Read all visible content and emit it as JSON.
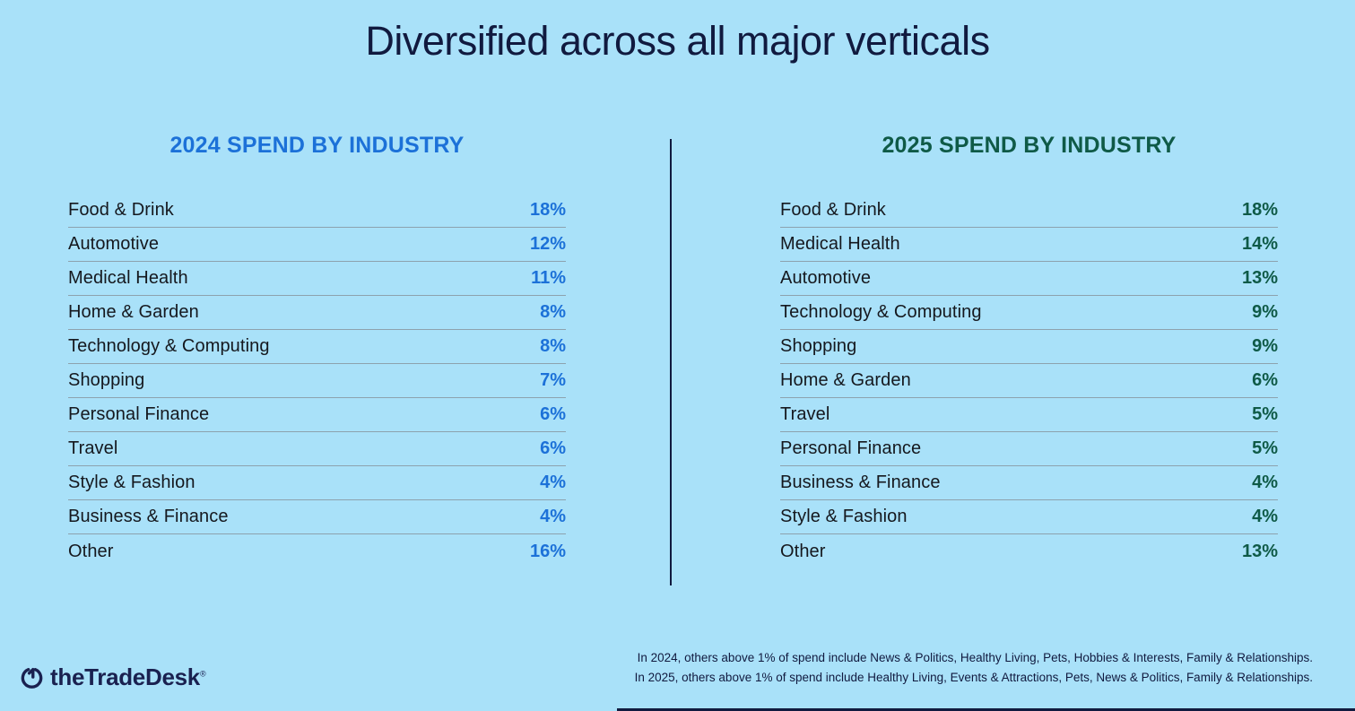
{
  "title": "Diversified across all major verticals",
  "colors": {
    "bg": "#A9E1F9",
    "navy": "#111A3F",
    "ink": "#15181E",
    "blue": "#1C71D8",
    "green": "#0F5A47",
    "line": "#8DA2AE",
    "logo": "#1A2150"
  },
  "tables": [
    {
      "header": "2024 SPEND BY INDUSTRY",
      "accent": "#1C71D8",
      "rows": [
        {
          "label": "Food & Drink",
          "value": "18%"
        },
        {
          "label": "Automotive",
          "value": "12%"
        },
        {
          "label": "Medical Health",
          "value": "11%"
        },
        {
          "label": "Home & Garden",
          "value": "8%"
        },
        {
          "label": "Technology & Computing",
          "value": "8%"
        },
        {
          "label": "Shopping",
          "value": "7%"
        },
        {
          "label": "Personal Finance",
          "value": "6%"
        },
        {
          "label": "Travel",
          "value": "6%"
        },
        {
          "label": "Style & Fashion",
          "value": "4%"
        },
        {
          "label": "Business & Finance",
          "value": "4%"
        },
        {
          "label": "Other",
          "value": "16%"
        }
      ]
    },
    {
      "header": "2025 SPEND BY INDUSTRY",
      "accent": "#0F5A47",
      "rows": [
        {
          "label": "Food & Drink",
          "value": "18%"
        },
        {
          "label": "Medical Health",
          "value": "14%"
        },
        {
          "label": "Automotive",
          "value": "13%"
        },
        {
          "label": "Technology & Computing",
          "value": "9%"
        },
        {
          "label": "Shopping",
          "value": "9%"
        },
        {
          "label": "Home & Garden",
          "value": "6%"
        },
        {
          "label": "Travel",
          "value": "5%"
        },
        {
          "label": "Personal Finance",
          "value": "5%"
        },
        {
          "label": "Business & Finance",
          "value": "4%"
        },
        {
          "label": "Style & Fashion",
          "value": "4%"
        },
        {
          "label": "Other",
          "value": "13%"
        }
      ]
    }
  ],
  "footnotes": {
    "line1": "In 2024, others above 1% of spend include News & Politics, Healthy Living, Pets, Hobbies & Interests, Family & Relationships.",
    "line2": "In 2025, others above 1% of spend include Healthy Living, Events & Attractions, Pets, News & Politics, Family & Relationships."
  },
  "logo": {
    "text": "theTradeDesk",
    "registered": "®"
  },
  "chart_data": [
    {
      "type": "table",
      "title": "2024 SPEND BY INDUSTRY",
      "categories": [
        "Food & Drink",
        "Automotive",
        "Medical Health",
        "Home & Garden",
        "Technology & Computing",
        "Shopping",
        "Personal Finance",
        "Travel",
        "Style & Fashion",
        "Business & Finance",
        "Other"
      ],
      "values": [
        18,
        12,
        11,
        8,
        8,
        7,
        6,
        6,
        4,
        4,
        16
      ],
      "unit": "%"
    },
    {
      "type": "table",
      "title": "2025 SPEND BY INDUSTRY",
      "categories": [
        "Food & Drink",
        "Medical Health",
        "Automotive",
        "Technology & Computing",
        "Shopping",
        "Home & Garden",
        "Travel",
        "Personal Finance",
        "Business & Finance",
        "Style & Fashion",
        "Other"
      ],
      "values": [
        18,
        14,
        13,
        9,
        9,
        6,
        5,
        5,
        4,
        4,
        13
      ],
      "unit": "%"
    }
  ]
}
